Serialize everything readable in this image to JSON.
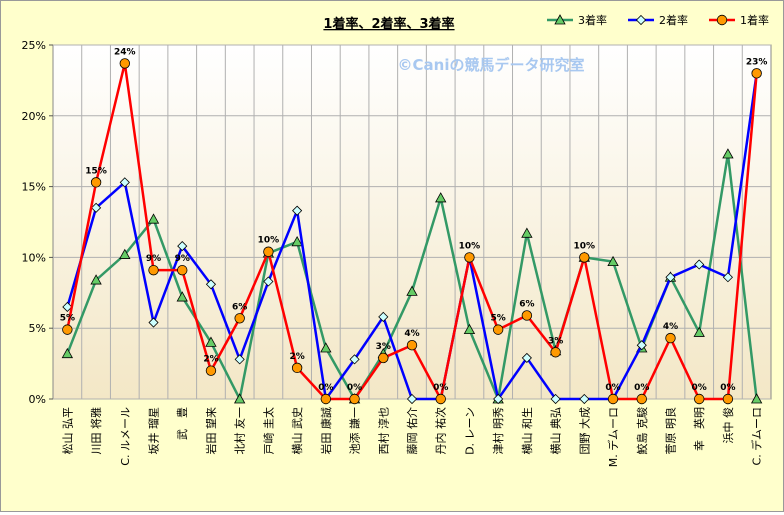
{
  "chart_data": {
    "type": "line",
    "title": "1着率、2着率、3着率",
    "watermark": "©Caniの競馬データ研究室",
    "ylim": [
      0,
      25
    ],
    "yticks": [
      0,
      5,
      10,
      15,
      20,
      25
    ],
    "ytick_labels": [
      "0%",
      "5%",
      "10%",
      "15%",
      "20%",
      "25%"
    ],
    "grid": true,
    "legend_position": "top-right",
    "categories": [
      "松山 弘平",
      "川田 将雅",
      "C. ルメール",
      "坂井 瑠星",
      "武　豊",
      "岩田 望来",
      "北村 友一",
      "戸崎 圭太",
      "横山 武史",
      "岩田 康誠",
      "池添 謙一",
      "西村 淳也",
      "藤岡 佑介",
      "丹内 祐次",
      "D. レーン",
      "津村 明秀",
      "横山 和生",
      "横山 典弘",
      "団野 大成",
      "M. デムーロ",
      "鮫島 克駿",
      "菅原 明良",
      "幸　英明",
      "浜中 俊",
      "C. デムーロ"
    ],
    "series": [
      {
        "name": "3着率",
        "color": "#339966",
        "marker": "triangle",
        "values": [
          3.2,
          8.4,
          10.2,
          12.7,
          7.2,
          4.0,
          0,
          10.3,
          11.1,
          3.6,
          0,
          3.2,
          7.6,
          14.2,
          4.9,
          0,
          11.7,
          3.4,
          10.0,
          9.7,
          3.6,
          8.6,
          4.7,
          17.3,
          0
        ]
      },
      {
        "name": "2着率",
        "color": "#0000ff",
        "marker": "diamond",
        "values": [
          6.5,
          13.5,
          15.3,
          5.4,
          10.8,
          8.1,
          2.8,
          8.3,
          13.3,
          0,
          2.8,
          5.8,
          0,
          0,
          10.0,
          0,
          2.9,
          0,
          0,
          0,
          3.8,
          8.6,
          9.5,
          8.6,
          23.0
        ]
      },
      {
        "name": "1着率",
        "color": "#ff0000",
        "marker": "circle",
        "values": [
          4.9,
          15.3,
          23.7,
          9.1,
          9.1,
          2.0,
          5.7,
          10.4,
          2.2,
          0,
          0,
          2.9,
          3.8,
          0,
          10.0,
          4.9,
          5.9,
          3.3,
          10.0,
          0,
          0,
          4.3,
          0,
          0,
          23.0
        ]
      }
    ],
    "data_labels": [
      "5%",
      "15%",
      "24%",
      "9%",
      "9%",
      "2%",
      "6%",
      "10%",
      "2%",
      "0%",
      "0%",
      "3%",
      "4%",
      "0%",
      "10%",
      "5%",
      "6%",
      "3%",
      "10%",
      "0%",
      "0%",
      "4%",
      "0%",
      "0%",
      "23%"
    ]
  }
}
